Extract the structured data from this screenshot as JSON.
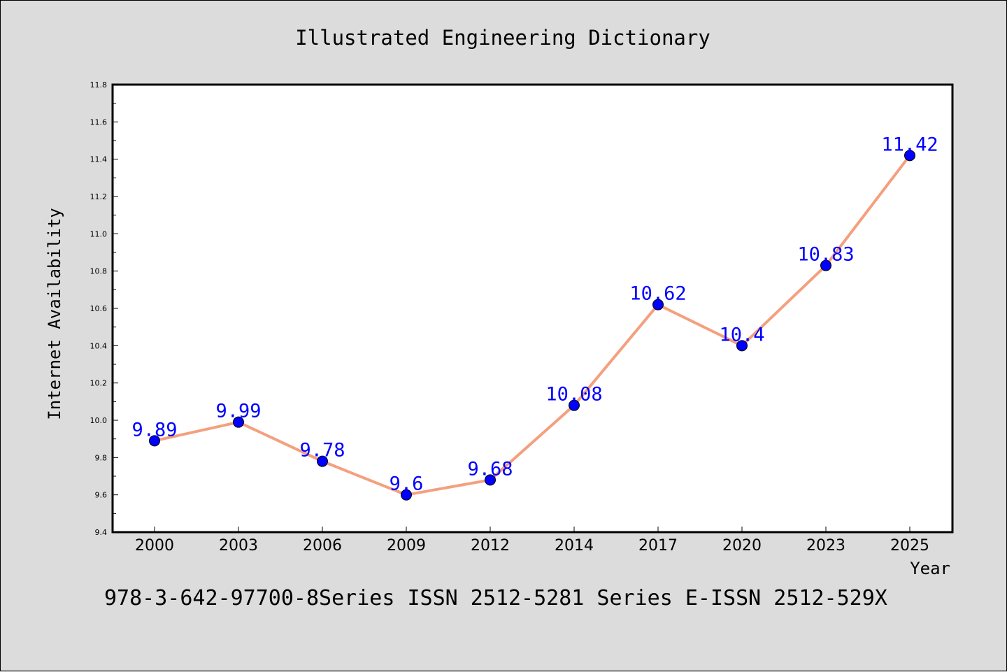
{
  "chart_data": {
    "type": "line",
    "title": "Illustrated Engineering Dictionary",
    "xlabel": "Year",
    "ylabel": "Internet Availability",
    "categories": [
      "2000",
      "2003",
      "2006",
      "2009",
      "2012",
      "2014",
      "2017",
      "2020",
      "2023",
      "2025"
    ],
    "series": [
      {
        "values": [
          9.89,
          9.99,
          9.78,
          9.6,
          9.68,
          10.08,
          10.62,
          10.4,
          10.83,
          11.42
        ],
        "data_labels": [
          "9.89",
          "9.99",
          "9.78",
          "9.6",
          "9.68",
          "10.08",
          "10.62",
          "10.4",
          "10.83",
          "11.42"
        ],
        "line_color": "#f4a07e",
        "marker_color": "#0000ff"
      }
    ],
    "ylim": [
      9.4,
      11.8
    ],
    "yticks": [
      "9.4",
      "9.6",
      "9.8",
      "10.0",
      "10.2",
      "10.4",
      "10.6",
      "10.8",
      "11.0",
      "11.2",
      "11.4",
      "11.6",
      "11.8"
    ],
    "grid": false,
    "label_color": "#0000ff"
  },
  "footer": {
    "text": "978-3-642-97700-8Series ISSN 2512-5281 Series E-ISSN 2512-529X"
  }
}
